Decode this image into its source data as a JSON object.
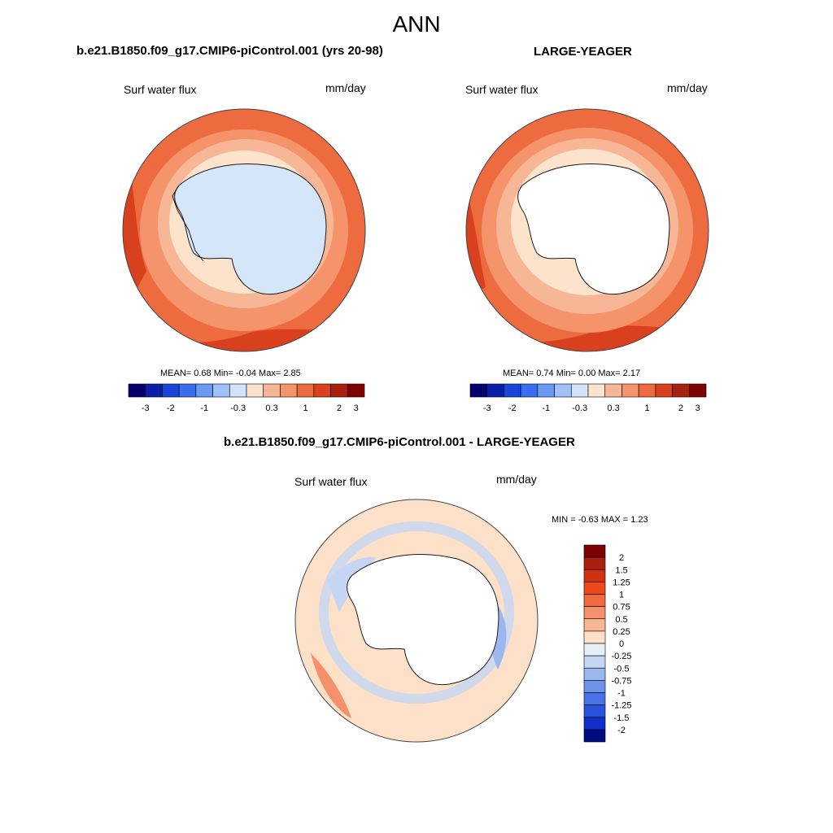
{
  "title": "ANN",
  "panels": [
    {
      "title": "b.e21.B1850.f09_g17.CMIP6-piControl.001 (yrs 20-98)",
      "left_label": "Surf water flux",
      "right_label": "mm/day",
      "stats": {
        "mean": "0.68",
        "min": "-0.04",
        "max": "2.85"
      },
      "stats_text": "MEAN=   0.68  Min=  -0.04  Max=   2.85"
    },
    {
      "title": "LARGE-YEAGER",
      "left_label": "Surf water flux",
      "right_label": "mm/day",
      "stats": {
        "mean": "0.74",
        "min": "0.00",
        "max": "2.17"
      },
      "stats_text": "MEAN=   0.74  Min=   0.00  Max=   2.17"
    },
    {
      "title": "b.e21.B1850.f09_g17.CMIP6-piControl.001 - LARGE-YEAGER",
      "left_label": "Surf water flux",
      "right_label": "mm/day",
      "stats": {
        "min": "-0.63",
        "max": "1.23"
      },
      "stats_text": "MIN =  -0.63 MAX =   1.23"
    }
  ],
  "horizontal_colorbar": {
    "colors": [
      "#08006d",
      "#0a1fa8",
      "#1846d6",
      "#3a6ef0",
      "#6a9af5",
      "#9fbff7",
      "#d3e4fa",
      "#fde3cc",
      "#f7b796",
      "#f5936b",
      "#ee6b40",
      "#d9401e",
      "#a8210e",
      "#7f0000"
    ],
    "ticks": [
      "-3",
      "-2",
      "-1",
      "-0.3",
      "0.3",
      "1",
      "2",
      "3"
    ]
  },
  "vertical_colorbar": {
    "colors": [
      "#7f0000",
      "#a8210e",
      "#d0310f",
      "#ec4a1c",
      "#f16a3c",
      "#f5906a",
      "#f8b693",
      "#fde0c8",
      "#e6eef8",
      "#c4d6f4",
      "#9ab7ef",
      "#6e93ea",
      "#4a72e6",
      "#2a51de",
      "#0f2fc7",
      "#000c80"
    ],
    "ticks": [
      "2",
      "1.5",
      "1.25",
      "1",
      "0.75",
      "0.5",
      "0.25",
      "0",
      "-0.25",
      "-0.5",
      "-0.75",
      "-1",
      "-1.25",
      "-1.5",
      "-2"
    ]
  },
  "colors": {
    "antarctica_fill_panel1": "#d6e6fa",
    "ocean_light": "#fde3cc",
    "ocean_mid": "#f7b796",
    "ocean_strong": "#f5936b",
    "ocean_deep": "#ee6b40",
    "diff_blue": "#c4d6f4",
    "diff_mid": "#fde0c8"
  }
}
